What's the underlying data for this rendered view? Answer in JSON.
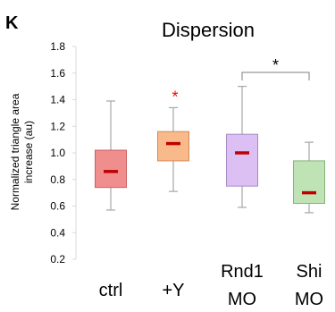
{
  "chart_data": {
    "type": "box",
    "panel_label": "K",
    "title": "Dispersion",
    "ylabel": "Normalized triangle area increase (au)",
    "ylim": [
      0.2,
      1.8
    ],
    "yticks": [
      "0.2",
      "0.4",
      "0.6",
      "0.8",
      "1.0",
      "1.2",
      "1.4",
      "1.6",
      "1.8"
    ],
    "grid": false,
    "categories": [
      {
        "lines": [
          "ctrl"
        ]
      },
      {
        "lines": [
          "+Y"
        ]
      },
      {
        "lines": [
          "Rnd1",
          "MO"
        ]
      },
      {
        "lines": [
          "Shi",
          "MO"
        ]
      }
    ],
    "boxes": [
      {
        "min": 0.57,
        "q1": 0.74,
        "median": 0.86,
        "q3": 1.02,
        "max": 1.39,
        "fill": "#f08e8e",
        "stroke": "#c95f5f"
      },
      {
        "min": 0.71,
        "q1": 0.94,
        "median": 1.07,
        "q3": 1.16,
        "max": 1.34,
        "fill": "#f8b98b",
        "stroke": "#d48a55"
      },
      {
        "min": 0.59,
        "q1": 0.75,
        "median": 1.0,
        "q3": 1.14,
        "max": 1.5,
        "fill": "#dcc0f3",
        "stroke": "#a98bc6"
      },
      {
        "min": 0.55,
        "q1": 0.62,
        "median": 0.7,
        "q3": 0.94,
        "max": 1.08,
        "fill": "#bfe3b4",
        "stroke": "#86b27a"
      }
    ],
    "median_color": "#c00000",
    "whisker_color": "#a6a6a6",
    "annotations": [
      {
        "text": "*",
        "category_index": 1,
        "color": "#ff0000"
      },
      {
        "text": "*",
        "bracket": [
          2,
          3
        ],
        "color": "#000000"
      }
    ]
  }
}
